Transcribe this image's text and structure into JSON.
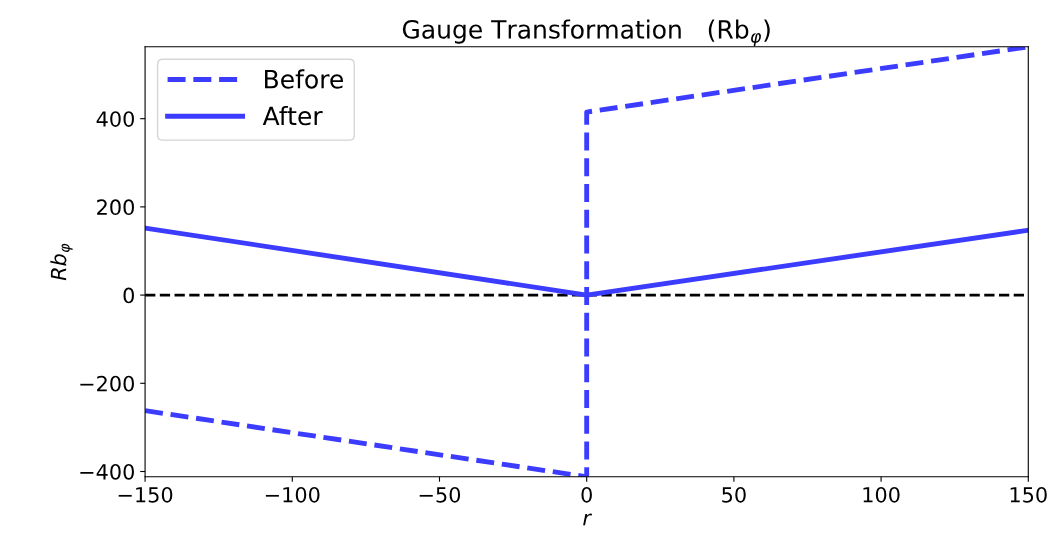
{
  "chart_data": {
    "type": "line",
    "title": "Gauge Transformation   (Rb$_{φ}$)",
    "xlabel": "r",
    "ylabel": "Rb$_{φ}$",
    "series": [
      {
        "name": "Before",
        "color": "#3c3cff",
        "line_style": "dashed",
        "x": [
          -150,
          0,
          0,
          150
        ],
        "values": [
          -262,
          -412,
          415,
          563
        ]
      },
      {
        "name": "After",
        "color": "#3c3cff",
        "line_style": "solid",
        "x": [
          -150,
          0,
          150
        ],
        "values": [
          152,
          0,
          147
        ]
      }
    ],
    "xlim": [
      -150,
      150
    ],
    "ylim": [
      -412,
      563
    ],
    "xticks": [
      {
        "value": -150,
        "label": "−150"
      },
      {
        "value": -100,
        "label": "−100"
      },
      {
        "value": -50,
        "label": "−50"
      },
      0,
      50,
      100,
      150
    ],
    "yticks": [
      {
        "value": -400,
        "label": "−400"
      },
      {
        "value": -200,
        "label": "−200"
      },
      0,
      200,
      400
    ],
    "ref_lines": [
      {
        "axis": "y",
        "value": 0,
        "color": "#000000",
        "line_style": "dashed"
      }
    ],
    "legend": "top left",
    "grid": false
  }
}
